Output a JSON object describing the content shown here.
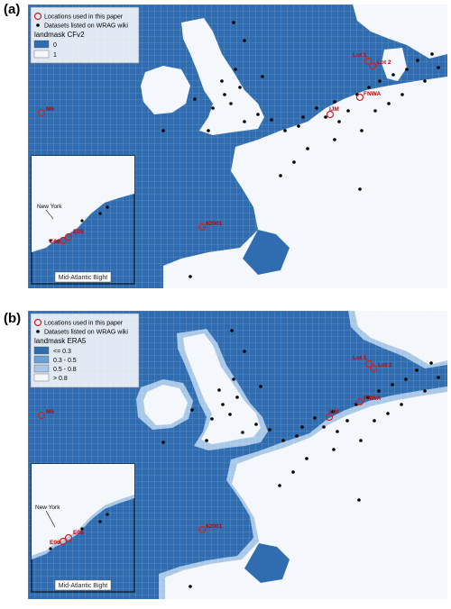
{
  "panels": [
    {
      "label": "(a)",
      "legend": {
        "locations_label": "Locations used in this paper",
        "datasets_label": "Datasets listed on WRAG wiki",
        "mask_title": "landmask CFv2",
        "classes": [
          {
            "label": "0",
            "color": "#2f6db0"
          },
          {
            "label": "1",
            "color": "#f4f7fb"
          }
        ]
      },
      "locations": [
        "M6",
        "IJM",
        "FNWA",
        "Lot 1",
        "Lot 2",
        "62001",
        "E05",
        "E06"
      ],
      "inset": {
        "title": "Mid-Atlantic Bight",
        "city": "New York"
      }
    },
    {
      "label": "(b)",
      "legend": {
        "locations_label": "Locations used in this paper",
        "datasets_label": "Datasets listed on WRAG wiki",
        "mask_title": "landmask ERA5",
        "classes": [
          {
            "label": "<= 0.3",
            "color": "#2f6db0"
          },
          {
            "label": "0.3 - 0.5",
            "color": "#6c9fd2"
          },
          {
            "label": "0.5 - 0.8",
            "color": "#a9c8e8"
          },
          {
            "label": "> 0.8",
            "color": "#f4f7fb"
          }
        ]
      },
      "locations": [
        "M6",
        "IJM",
        "FNWA",
        "Lot 1",
        "Lot 2",
        "62001",
        "E05",
        "E06"
      ],
      "inset": {
        "title": "Mid-Atlantic Bight",
        "city": "New York"
      }
    }
  ],
  "colors": {
    "sea": "#2f6db0",
    "land": "#f4f7fb",
    "location_ring": "#d42020",
    "dataset_dot": "#000000"
  }
}
